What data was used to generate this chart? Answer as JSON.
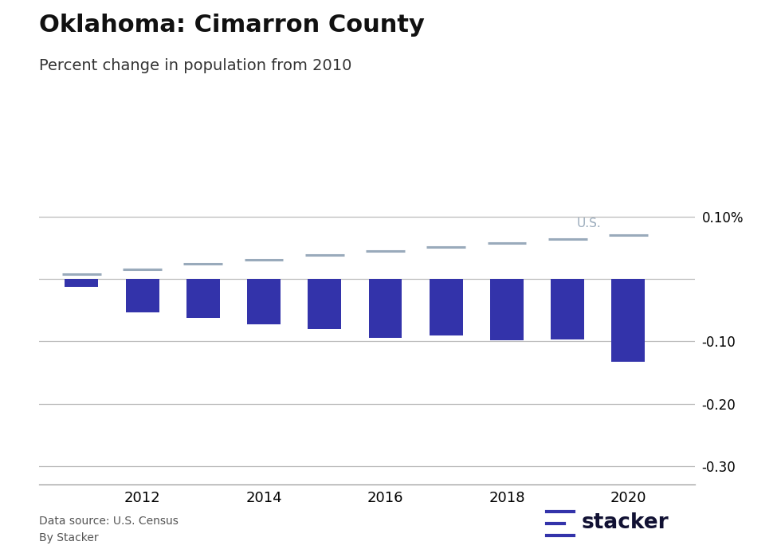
{
  "title": "Oklahoma: Cimarron County",
  "subtitle": "Percent change in population from 2010",
  "title_fontsize": 22,
  "subtitle_fontsize": 14,
  "bar_color": "#3333aa",
  "us_line_color": "#99aabb",
  "us_label": "U.S.",
  "data_source_text": "Data source: U.S. Census",
  "by_text": "By Stacker",
  "years": [
    2011,
    2012,
    2013,
    2014,
    2015,
    2016,
    2017,
    2018,
    2019,
    2020
  ],
  "county_values": [
    -0.013,
    -0.053,
    -0.063,
    -0.073,
    -0.08,
    -0.095,
    -0.09,
    -0.098,
    -0.097,
    -0.1323
  ],
  "us_values": [
    0.008,
    0.016,
    0.024,
    0.031,
    0.038,
    0.045,
    0.052,
    0.058,
    0.064,
    0.07
  ],
  "ylim": [
    -0.33,
    0.135
  ],
  "yticks": [
    0.1,
    0.0,
    -0.1,
    -0.2,
    -0.3
  ],
  "ytick_labels": [
    "0.10%",
    "",
    "-0.10",
    "-0.20",
    "-0.30"
  ],
  "background_color": "#ffffff",
  "bar_width": 0.55,
  "spine_color": "#999999",
  "grid_color": "#bbbbbb"
}
